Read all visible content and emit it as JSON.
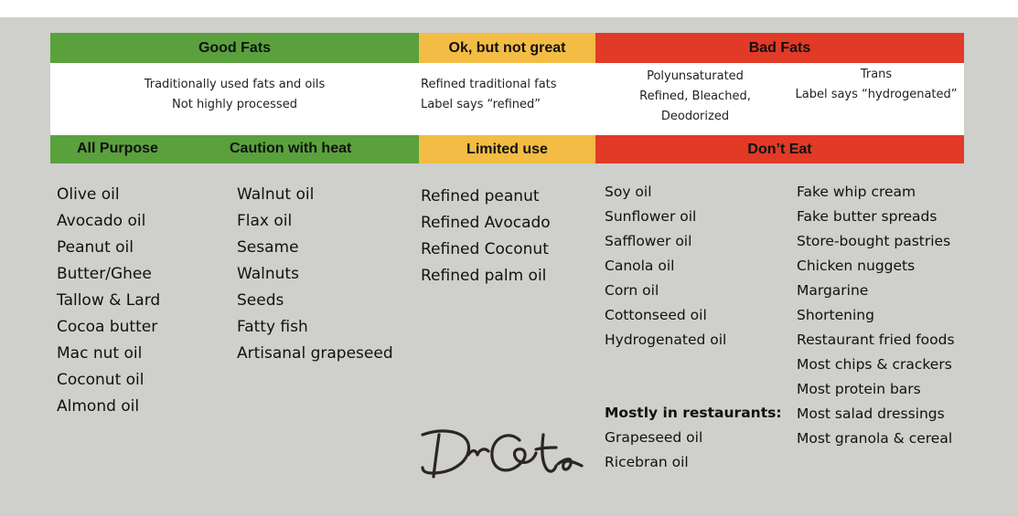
{
  "categories": {
    "good": "Good Fats",
    "ok": "Ok, but not great",
    "bad": "Bad Fats"
  },
  "descriptions": {
    "good": [
      "Traditionally used fats and oils",
      "Not highly processed"
    ],
    "ok": [
      "Refined traditional fats",
      "Label says “refined”"
    ],
    "bad_poly": [
      "Polyunsaturated",
      "Refined, Bleached,",
      "Deodorized"
    ],
    "bad_trans": [
      "Trans",
      "Label says “hydrogenated”"
    ]
  },
  "subheaders": {
    "all_purpose": "All Purpose",
    "caution": "Caution with heat",
    "limited": "Limited use",
    "dont_eat": "Don’t Eat"
  },
  "columns": {
    "all_purpose": [
      "Olive oil",
      "Avocado oil",
      "Peanut oil",
      "Butter/Ghee",
      "Tallow & Lard",
      "Cocoa butter",
      "Mac nut oil",
      "Coconut oil",
      "Almond oil"
    ],
    "caution": [
      "Walnut oil",
      "Flax oil",
      "Sesame",
      "Walnuts",
      "Seeds",
      "Fatty fish",
      "Artisanal grapeseed"
    ],
    "limited": [
      "Refined peanut",
      "Refined Avocado",
      "Refined Coconut",
      "Refined palm oil"
    ],
    "dont_eat_poly": [
      "Soy oil",
      "Sunflower oil",
      "Safflower oil",
      "Canola oil",
      "Corn oil",
      "Cottonseed oil",
      "Hydrogenated oil"
    ],
    "restaurants_heading": "Mostly in restaurants:",
    "restaurants": [
      "Grapeseed oil",
      "Ricebran oil"
    ],
    "dont_eat_trans": [
      "Fake whip cream",
      "Fake butter spreads",
      "Store-bought pastries",
      "Chicken nuggets",
      "Margarine",
      "Shortening",
      "Restaurant fried foods",
      "Most chips & crackers",
      "Most protein bars",
      "Most salad dressings",
      "Most granola & cereal"
    ]
  },
  "signature": "DrCate",
  "colors": {
    "good": "#5aa13d",
    "ok": "#f2bc45",
    "bad": "#e13a26",
    "background": "#cfcfcc"
  }
}
